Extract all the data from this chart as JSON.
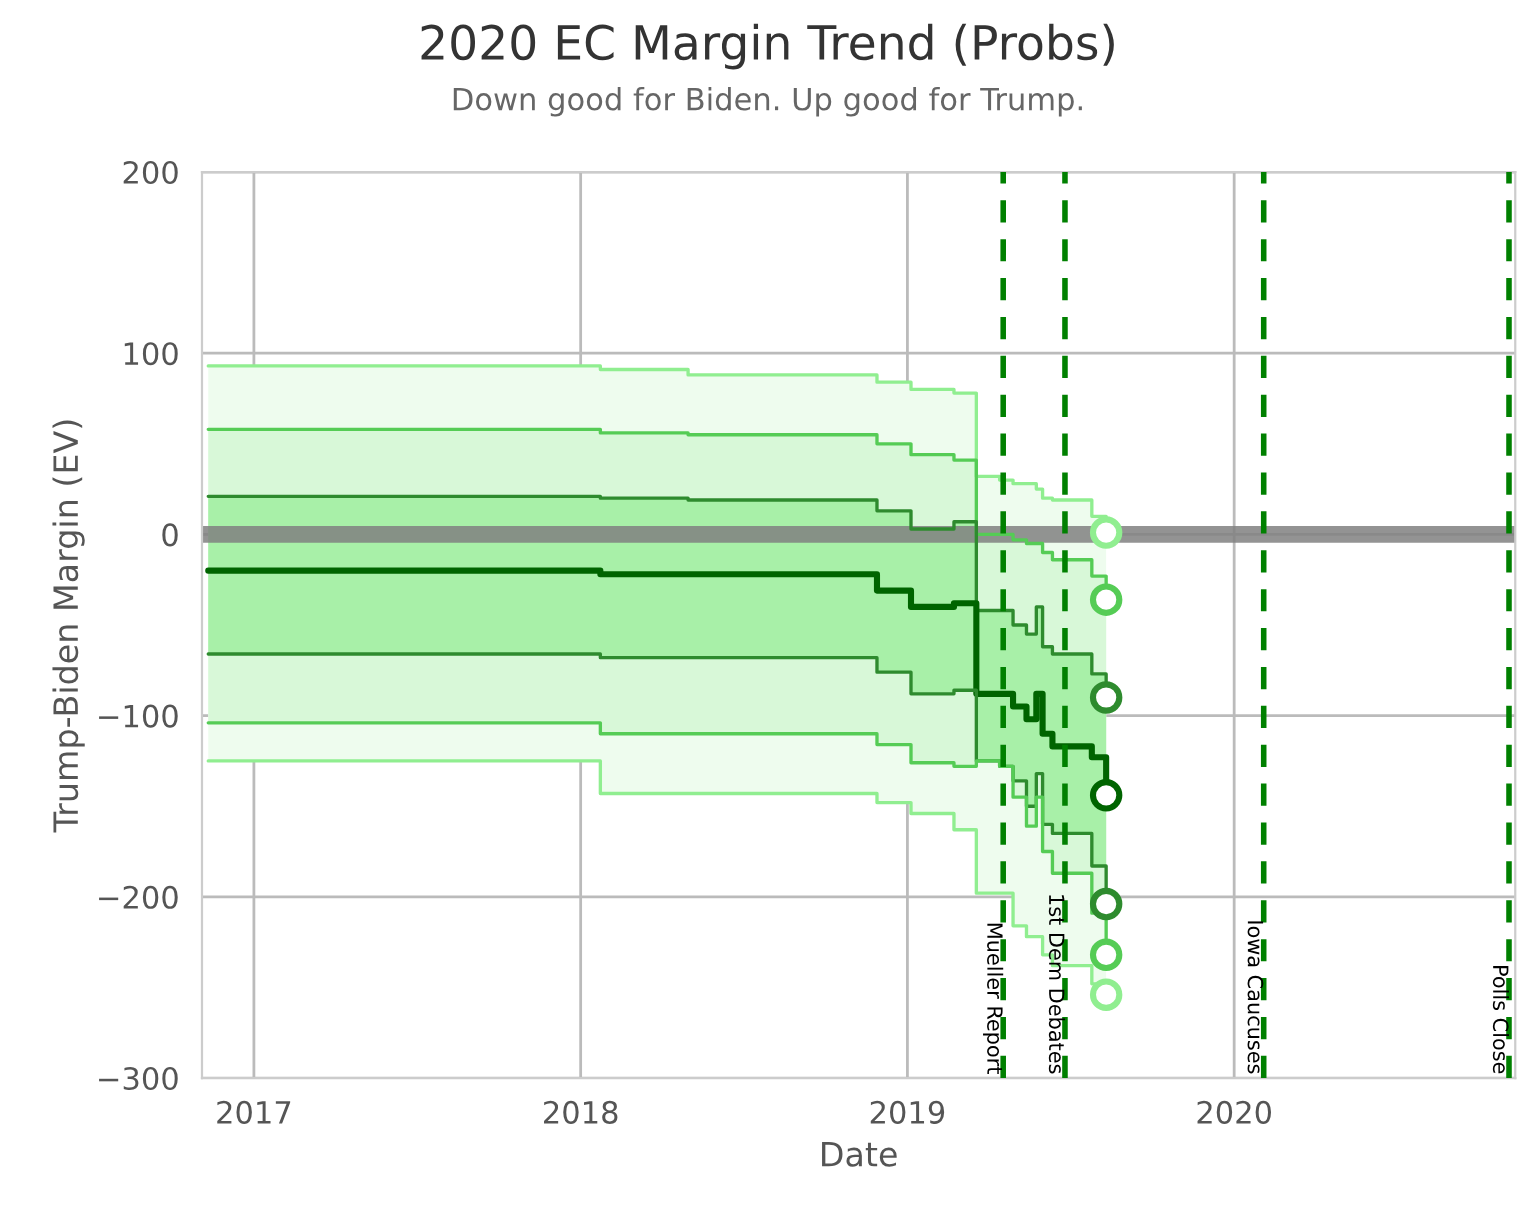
{
  "chart_data": {
    "type": "step",
    "title": "2020 EC Margin Trend (Probs)",
    "subtitle": "Down good for Biden. Up good for Trump.",
    "xlabel": "Date",
    "ylabel": "Trump-Biden Margin (EV)",
    "x": [
      "2016-11-11",
      "2018-01-23",
      "2018-05-01",
      "2018-11-28",
      "2019-01-05",
      "2019-02-22",
      "2019-03-19",
      "2019-04-14",
      "2019-04-29",
      "2019-05-14",
      "2019-05-25",
      "2019-06-01",
      "2019-06-12",
      "2019-07-26",
      "2019-08-11"
    ],
    "series": [
      {
        "color": "#90ee90",
        "values": [
          93,
          91,
          88,
          84,
          80,
          78,
          32,
          30,
          28,
          28,
          25,
          20,
          19,
          10,
          1
        ],
        "lower": [
          -125,
          -143,
          -143,
          -148,
          -154,
          -163,
          -198,
          -198,
          -216,
          -222,
          -222,
          -232,
          -238,
          -248,
          -254
        ],
        "upper": [
          93,
          91,
          88,
          84,
          80,
          78,
          32,
          30,
          28,
          28,
          25,
          20,
          19,
          10,
          1
        ]
      },
      {
        "color": "#55cc55",
        "values": [
          58,
          56,
          55,
          50,
          44,
          41,
          0,
          0,
          -3,
          -5,
          -5,
          -10,
          -14,
          -23,
          -36
        ],
        "lower": [
          -104,
          -110,
          -110,
          -116,
          -126,
          -128,
          -125,
          -128,
          -145,
          -161,
          -145,
          -175,
          -187,
          -209,
          -232
        ],
        "upper": [
          58,
          56,
          55,
          50,
          44,
          41,
          0,
          0,
          -3,
          -5,
          -5,
          -10,
          -14,
          -23,
          -36
        ]
      },
      {
        "color": "#2e8b2e",
        "values": [
          21,
          20,
          19,
          13,
          3,
          7,
          -42,
          -42,
          -50,
          -55,
          -40,
          -62,
          -66,
          -77,
          -90
        ],
        "lower": [
          -66,
          -68,
          -68,
          -76,
          -88,
          -86,
          -125,
          -128,
          -136,
          -150,
          -132,
          -160,
          -165,
          -183,
          -204
        ],
        "upper": [
          21,
          20,
          19,
          13,
          3,
          7,
          -42,
          -42,
          -50,
          -55,
          -40,
          -62,
          -66,
          -77,
          -90
        ]
      },
      {
        "color": "#006400",
        "values": [
          -20,
          -22,
          -22,
          -31,
          -40,
          -38,
          -88,
          -88,
          -95,
          -102,
          -88,
          -110,
          -117,
          -123,
          -144
        ]
      },
      {
        "color": "#2e8b2e",
        "values": [
          -66,
          -68,
          -68,
          -76,
          -88,
          -86,
          -125,
          -128,
          -136,
          -150,
          -132,
          -160,
          -165,
          -183,
          -204
        ]
      },
      {
        "color": "#55cc55",
        "values": [
          -104,
          -110,
          -110,
          -116,
          -126,
          -128,
          -125,
          -128,
          -145,
          -161,
          -145,
          -175,
          -187,
          -209,
          -232
        ]
      },
      {
        "color": "#90ee90",
        "values": [
          -125,
          -143,
          -143,
          -148,
          -154,
          -163,
          -198,
          -198,
          -216,
          -222,
          -222,
          -232,
          -238,
          -248,
          -254
        ]
      },
      {
        "type": "scatter",
        "marker": "circle",
        "x": [
          "2019-08-11",
          "2019-08-11",
          "2019-08-11",
          "2019-08-11",
          "2019-08-11",
          "2019-08-11",
          "2019-08-11"
        ],
        "values": [
          1,
          -36,
          -90,
          -144,
          -204,
          -232,
          -254
        ],
        "colors": [
          "#90ee90",
          "#55cc55",
          "#2e8b2e",
          "#006400",
          "#2e8b2e",
          "#55cc55",
          "#90ee90"
        ]
      }
    ],
    "ref_lines": [
      {
        "axis": "y",
        "value": 0,
        "color": "#808080",
        "line_style": "solid"
      },
      {
        "axis": "x",
        "value": "2019-04-18",
        "label": "Mueller Report",
        "color": "#008000",
        "line_style": "dashed"
      },
      {
        "axis": "x",
        "value": "2019-06-26",
        "label": "1st Dem Debates",
        "color": "#008000",
        "line_style": "dashed"
      },
      {
        "axis": "x",
        "value": "2020-02-03",
        "label": "Iowa Caucuses",
        "color": "#008000",
        "line_style": "dashed"
      },
      {
        "axis": "x",
        "value": "2020-11-03",
        "label": "Polls Close",
        "color": "#008000",
        "line_style": "dashed"
      }
    ],
    "xlim": [
      "2016-11-04",
      "2020-11-10"
    ],
    "xticks": [
      {
        "value": "2017-01-01",
        "label": "2017"
      },
      {
        "value": "2018-01-01",
        "label": "2018"
      },
      {
        "value": "2019-01-01",
        "label": "2019"
      },
      {
        "value": "2020-01-01",
        "label": "2020"
      }
    ],
    "ylim": [
      -300,
      200
    ],
    "yticks": [
      -300,
      -200,
      -100,
      0,
      100,
      200
    ],
    "grid": true,
    "legend": false,
    "marker": "none",
    "line_style": "solid"
  }
}
